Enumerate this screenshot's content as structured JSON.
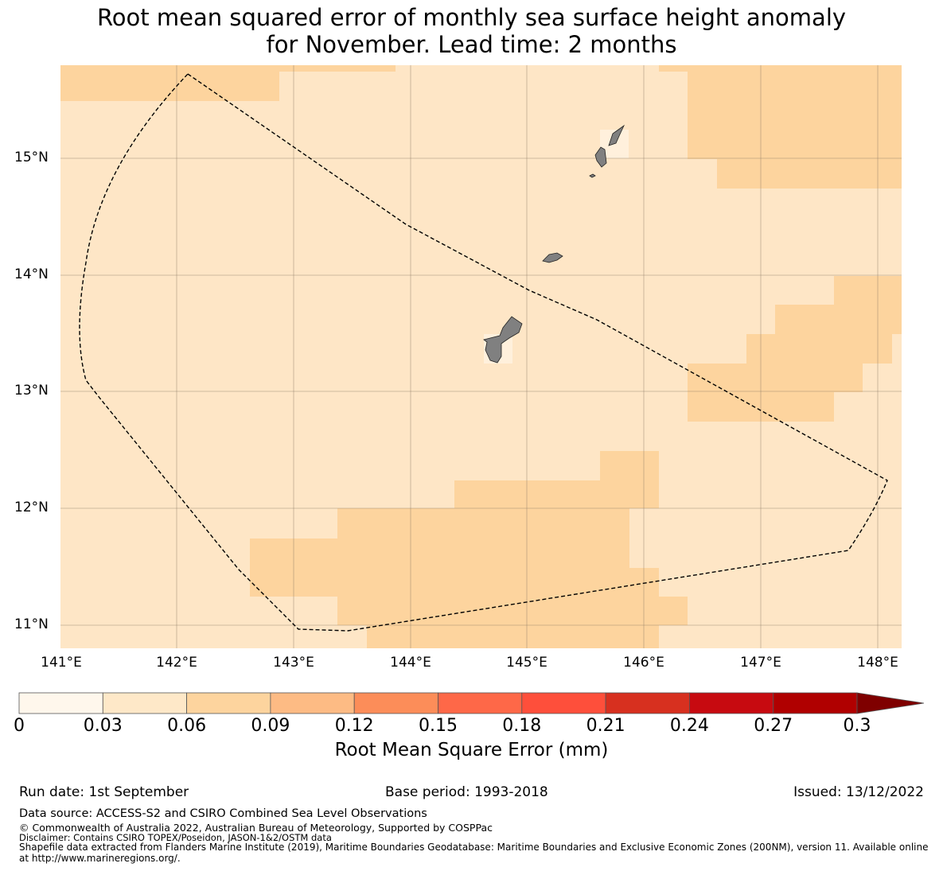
{
  "title": {
    "line1": "Root mean squared error of monthly sea surface height anomaly",
    "line2": "for November. Lead time: 2 months"
  },
  "map": {
    "lat_labels": [
      "15°N",
      "14°N",
      "13°N",
      "12°N",
      "11°N"
    ],
    "lon_labels": [
      "141°E",
      "142°E",
      "143°E",
      "144°E",
      "145°E",
      "146°E",
      "147°E",
      "148°E"
    ],
    "colors": {
      "bin_0_003": "#fff0dc",
      "bin_003_006": "#fee6c6",
      "bin_006_009": "#fdd49e",
      "land": "#808080",
      "boundary": "#000000"
    }
  },
  "colorbar": {
    "label": "Root Mean Square Error (mm)",
    "ticks": [
      "0",
      "0.03",
      "0.06",
      "0.09",
      "0.12",
      "0.15",
      "0.18",
      "0.21",
      "0.24",
      "0.27",
      "0.3"
    ],
    "colors": [
      "#fff7ec",
      "#fee8c8",
      "#fdd49e",
      "#fdbb84",
      "#fc8d59",
      "#fe6848",
      "#fe4f3b",
      "#d7301f",
      "#c70a10",
      "#b00000",
      "#7f0000"
    ]
  },
  "info": {
    "run_date": "Run date: 1st September",
    "base_period": "Base period: 1993-2018",
    "issued": "Issued: 13/12/2022"
  },
  "notes": {
    "source": "Data source: ACCESS-S2 and CSIRO Combined Sea Level Observations",
    "copyright": "© Commonwealth of Australia 2022, Australian Bureau of Meteorology, Supported by COSPPac",
    "disclaimer": "Disclaimer: Contains CSIRO TOPEX/Poseidon, JASON-1&2/OSTM data",
    "shapefile": "Shapefile data extracted from Flanders Marine Institute (2019), Maritime Boundaries Geodatabase: Maritime Boundaries and Exclusive Economic Zones (200NM), version 11. Available online",
    "shapefile_cont": "at http://www.marineregions.org/."
  }
}
